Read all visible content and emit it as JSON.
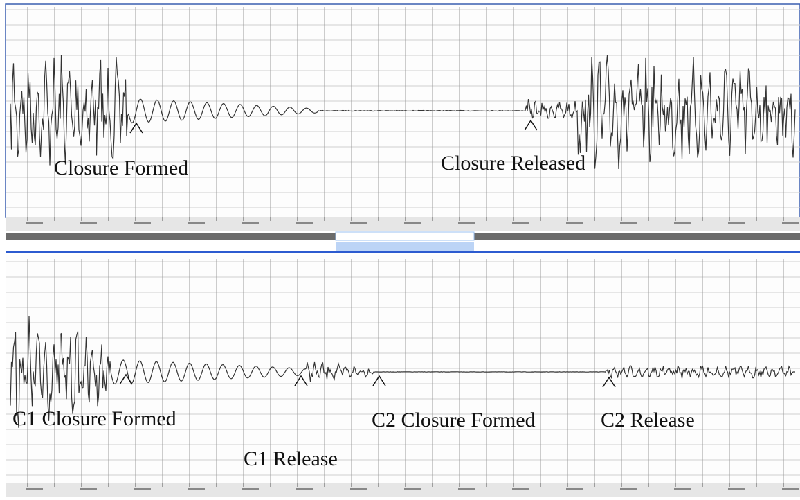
{
  "panels": [
    {
      "annotations": [
        "Closure Formed",
        "Closure Released"
      ]
    },
    {
      "annotations": [
        "C1 Closure Formed",
        "C1 Release",
        "C2 Closure Formed",
        "C2 Release"
      ]
    }
  ]
}
